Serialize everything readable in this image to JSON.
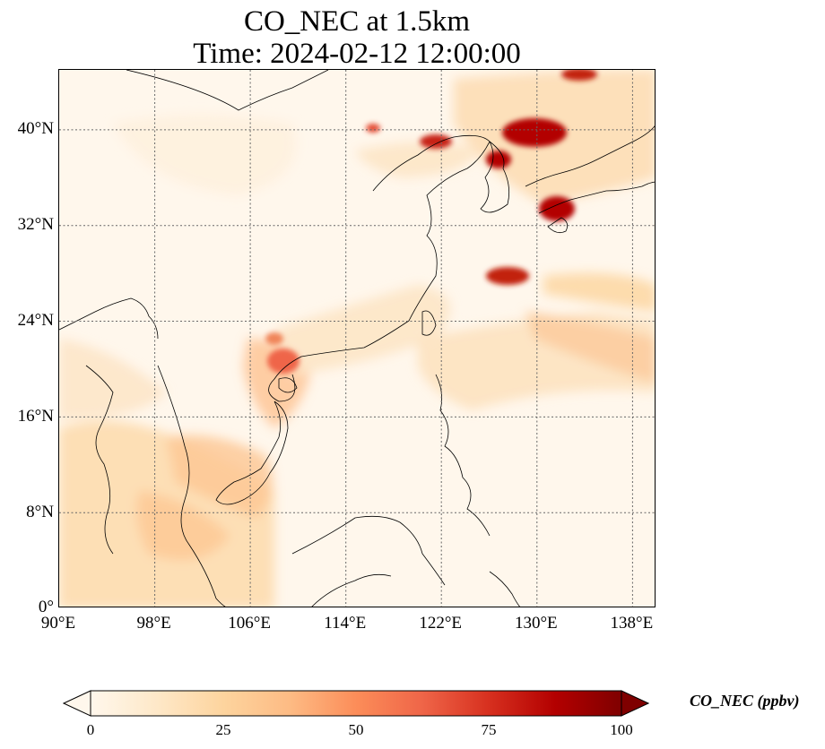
{
  "title": {
    "line1": "CO_NEC at 1.5km",
    "line2": "Time: 2024-02-12 12:00:00"
  },
  "map": {
    "variable": "CO_NEC",
    "level": "1.5km",
    "lon_range": [
      90,
      140
    ],
    "lat_range": [
      0,
      45
    ],
    "lon_ticks": [
      "90°E",
      "98°E",
      "106°E",
      "114°E",
      "122°E",
      "130°E",
      "138°E"
    ],
    "lat_ticks": [
      "0°",
      "8°N",
      "16°N",
      "24°N",
      "32°N",
      "40°N"
    ],
    "gridlines": true,
    "colormap": "OrRd",
    "colors": [
      "#fff7ec",
      "#fee8c8",
      "#fdd49e",
      "#fdbb84",
      "#fc8d59",
      "#ef6548",
      "#d7301f",
      "#b30000",
      "#7f0000"
    ]
  },
  "colorbar": {
    "label": "CO_NEC (ppbv)",
    "ticks": [
      "0",
      "25",
      "50",
      "75",
      "100"
    ],
    "range": [
      0,
      100
    ],
    "extend": "both"
  }
}
